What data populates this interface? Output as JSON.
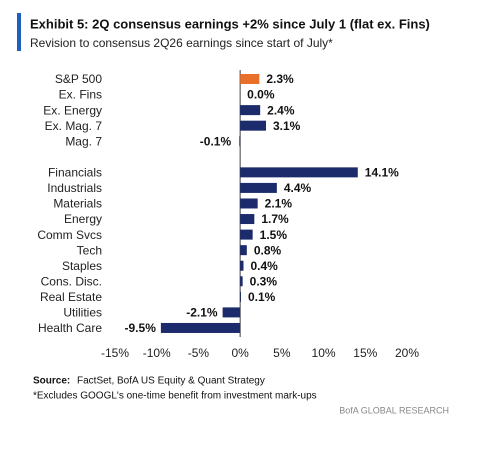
{
  "chart_data": {
    "type": "hbar",
    "title": "Exhibit 5: 2Q consensus earnings +2% since July 1 (flat ex. Fins)",
    "subtitle": "Revision to consensus 2Q26 earnings since start of July*",
    "categories": [
      "S&P 500",
      "Ex. Fins",
      "Ex. Energy",
      "Ex. Mag. 7",
      "Mag. 7",
      null,
      "Financials",
      "Industrials",
      "Materials",
      "Energy",
      "Comm Svcs",
      "Tech",
      "Staples",
      "Cons. Disc.",
      "Real Estate",
      "Utilities",
      "Health Care"
    ],
    "values": [
      2.3,
      0.0,
      2.4,
      3.1,
      -0.1,
      null,
      14.1,
      4.4,
      2.1,
      1.7,
      1.5,
      0.8,
      0.4,
      0.3,
      0.1,
      -2.1,
      -9.5
    ],
    "value_labels": [
      "2.3%",
      "0.0%",
      "2.4%",
      "3.1%",
      "-0.1%",
      null,
      "14.1%",
      "4.4%",
      "2.1%",
      "1.7%",
      "1.5%",
      "0.8%",
      "0.4%",
      "0.3%",
      "0.1%",
      "-2.1%",
      "-9.5%"
    ],
    "colors": [
      "#e8702a",
      "#1c2b6b",
      "#1c2b6b",
      "#1c2b6b",
      "#1c2b6b",
      null,
      "#1c2b6b",
      "#1c2b6b",
      "#1c2b6b",
      "#1c2b6b",
      "#1c2b6b",
      "#1c2b6b",
      "#1c2b6b",
      "#1c2b6b",
      "#1c2b6b",
      "#1c2b6b",
      "#1c2b6b"
    ],
    "xlim": [
      -15,
      20
    ],
    "xticks": [
      {
        "value": -15,
        "label": "-15%"
      },
      {
        "value": -10,
        "label": "-10%"
      },
      {
        "value": -5,
        "label": "-5%"
      },
      {
        "value": 0,
        "label": "0%"
      },
      {
        "value": 5,
        "label": "5%"
      },
      {
        "value": 10,
        "label": "10%"
      },
      {
        "value": 15,
        "label": "15%"
      },
      {
        "value": 20,
        "label": "20%"
      }
    ],
    "source_label": "Source:",
    "source": "FactSet, BofA US Equity & Quant Strategy",
    "footnote": "*Excludes GOOGL's one-time benefit from investment mark-ups",
    "brand": "BofA GLOBAL RESEARCH"
  }
}
